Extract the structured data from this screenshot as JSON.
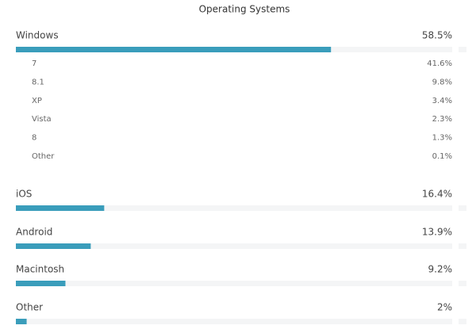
{
  "chart_data": {
    "type": "bar",
    "title": "Operating Systems",
    "categories": [
      "Windows",
      "iOS",
      "Android",
      "Macintosh",
      "Other"
    ],
    "values": [
      58.5,
      16.4,
      13.9,
      9.2,
      2
    ],
    "value_labels": [
      "58.5%",
      "16.4%",
      "13.9%",
      "9.2%",
      "2%"
    ],
    "color": "#3a9dbb",
    "details": {
      "categories": [
        "7",
        "8.1",
        "XP",
        "Vista",
        "8",
        "Other"
      ],
      "shares": [
        "41.6%",
        "9.8%",
        "3.4%",
        "2.3%",
        "1.3%",
        "0.1%"
      ]
    }
  }
}
